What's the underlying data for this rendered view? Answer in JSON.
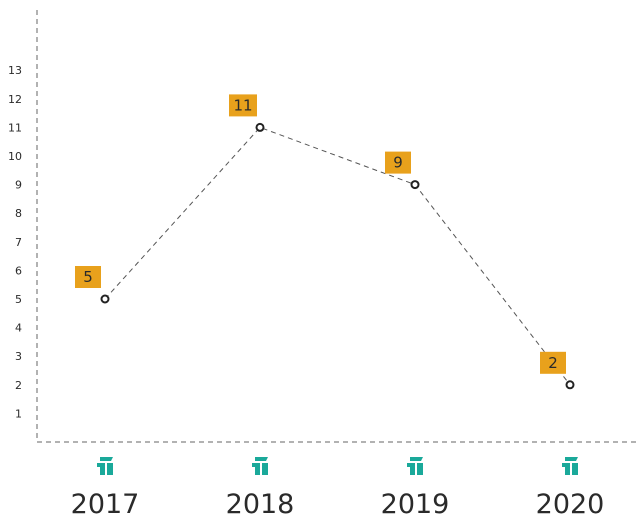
{
  "chart_data": {
    "type": "line",
    "categories": [
      "2017",
      "2018",
      "2019",
      "2020"
    ],
    "values": [
      5,
      11,
      9,
      2
    ],
    "y_ticks": [
      1,
      2,
      3,
      4,
      5,
      6,
      7,
      8,
      9,
      10,
      11,
      12,
      13
    ],
    "ylim": [
      0,
      14
    ],
    "grid": false,
    "line_style": "dashed",
    "category_icon": "company-logo-icon",
    "colors": {
      "line": "#555555",
      "marker": "#222222",
      "label_bg": "#e8a11c",
      "icon": "#1aa99a",
      "axis": "#666666",
      "text": "#2a2a2a"
    }
  }
}
